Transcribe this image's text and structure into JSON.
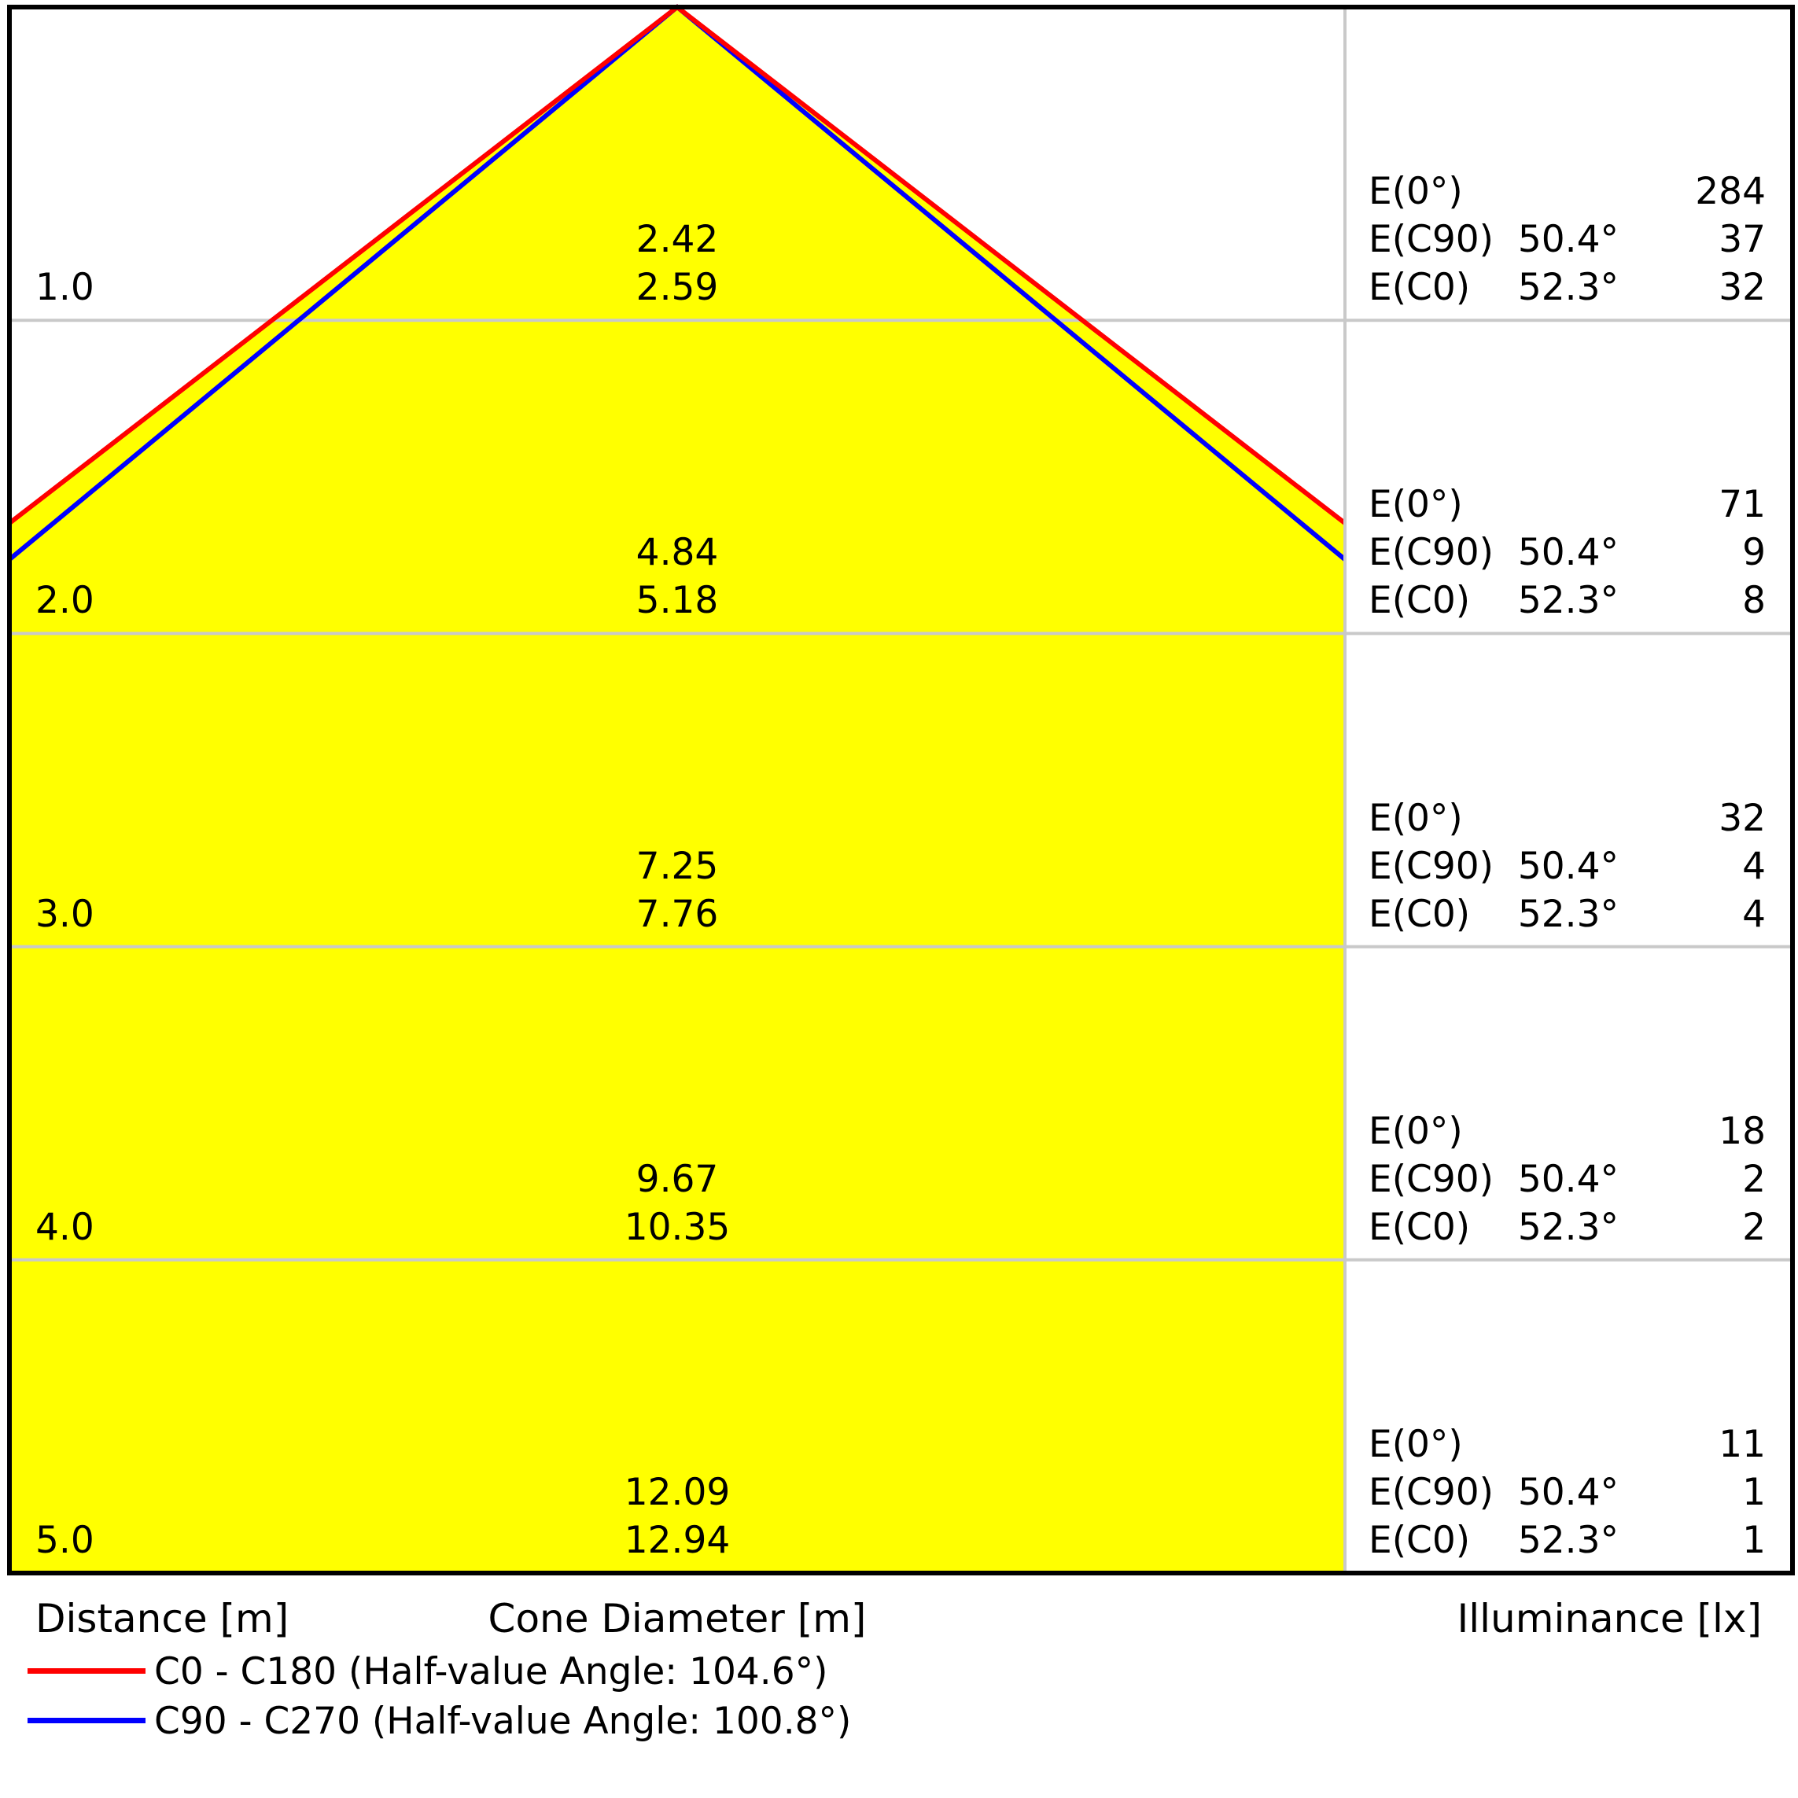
{
  "chart_data": {
    "type": "area",
    "description": "Luminaire light cone diagram: cone diameter and illuminance vs distance",
    "distances_m": [
      1.0,
      2.0,
      3.0,
      4.0,
      5.0
    ],
    "cone_diameter_m": {
      "c90_c270": [
        2.42,
        4.84,
        7.25,
        9.67,
        12.09
      ],
      "c0_c180": [
        2.59,
        5.18,
        7.76,
        10.35,
        12.94
      ]
    },
    "illuminance_lx": {
      "e0": [
        284,
        71,
        32,
        18,
        11
      ],
      "ec90": [
        37,
        9,
        4,
        2,
        1
      ],
      "ec0": [
        32,
        8,
        4,
        2,
        1
      ]
    },
    "rows": [
      {
        "distance": "1.0",
        "cone_diameter_c90": "2.42",
        "cone_diameter_c0": "2.59",
        "e0": "284",
        "ec90": "37",
        "ec0": "32"
      },
      {
        "distance": "2.0",
        "cone_diameter_c90": "4.84",
        "cone_diameter_c0": "5.18",
        "e0": "71",
        "ec90": "9",
        "ec0": "8"
      },
      {
        "distance": "3.0",
        "cone_diameter_c90": "7.25",
        "cone_diameter_c0": "7.76",
        "e0": "32",
        "ec90": "4",
        "ec0": "4"
      },
      {
        "distance": "4.0",
        "cone_diameter_c90": "9.67",
        "cone_diameter_c0": "10.35",
        "e0": "18",
        "ec90": "2",
        "ec0": "2"
      },
      {
        "distance": "5.0",
        "cone_diameter_c90": "12.09",
        "cone_diameter_c0": "12.94",
        "e0": "11",
        "ec90": "1",
        "ec0": "1"
      }
    ],
    "labels": {
      "e0": "E(0°)",
      "ec90": "E(C90)",
      "ec0": "E(C0)"
    },
    "angles": {
      "c90_half_deg": 50.4,
      "c0_half_deg": 52.3,
      "c90_label": "50.4°",
      "c0_label": "52.3°"
    },
    "footer": {
      "distance": "Distance [m]",
      "cone_diameter": "Cone Diameter [m]",
      "illuminance": "Illuminance [lx]"
    },
    "legend": [
      {
        "color": "#ff0000",
        "label": "C0 - C180 (Half-value Angle: 104.6°)"
      },
      {
        "color": "#0000ff",
        "label": "C90 - C270 (Half-value Angle: 100.8°)"
      }
    ],
    "colors": {
      "fill": "#ffff00",
      "c0_line": "#ff0000",
      "c90_line": "#0000ff",
      "grid": "#c9c9c9",
      "border": "#000000"
    }
  }
}
